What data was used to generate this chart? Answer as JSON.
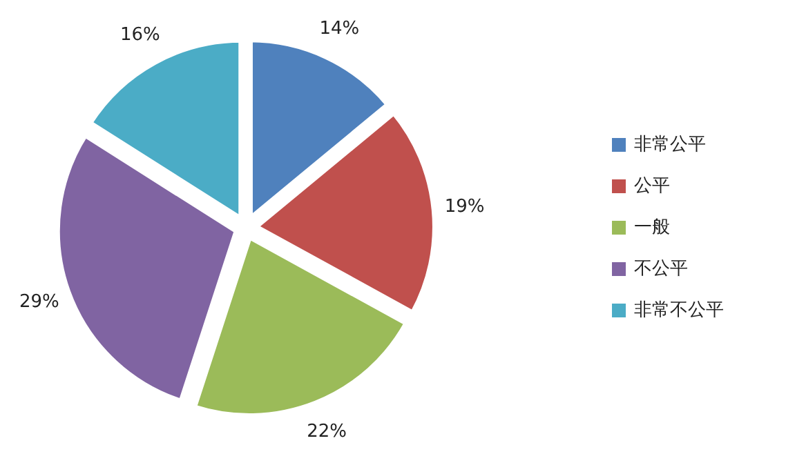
{
  "chart_data": {
    "type": "pie",
    "categories": [
      "非常公平",
      "公平",
      "一般",
      "不公平",
      "非常不公平"
    ],
    "values": [
      14,
      19,
      22,
      29,
      16
    ],
    "colors": [
      "#4f81bd",
      "#c0504d",
      "#9bbb59",
      "#8064a2",
      "#4bacc6"
    ],
    "value_labels": [
      "14%",
      "19%",
      "22%",
      "29%",
      "16%"
    ],
    "legend": "right"
  }
}
